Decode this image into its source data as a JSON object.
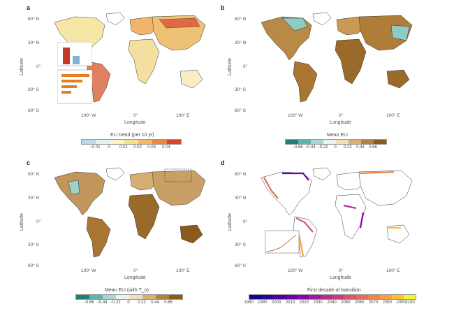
{
  "panels": {
    "a": {
      "label": "a",
      "y_ticks": [
        "60° N",
        "30° N",
        "0°",
        "30° S",
        "60° S"
      ],
      "x_ticks": [
        "100° W",
        "0°",
        "100° E"
      ],
      "xlabel": "Longitude",
      "ylabel": "Latitude",
      "colorbar_title": "ELI trend (per 10 yr)",
      "colorbar_ticks": [
        "−0.01",
        "0",
        "0.01",
        "0.02",
        "0.03",
        "0.04"
      ],
      "colorbar_colors": [
        "#b8dbea",
        "#e3f1f6",
        "#fbf3c8",
        "#f8df8c",
        "#f6b866",
        "#ee8445",
        "#d9452c"
      ]
    },
    "b": {
      "label": "b",
      "y_ticks": [
        "60° N",
        "30° N",
        "0°",
        "30° S",
        "60° S"
      ],
      "x_ticks": [
        "100° W",
        "0°",
        "100° E"
      ],
      "xlabel": "Longitude",
      "ylabel": "Latitude",
      "colorbar_title": "Mean ELI",
      "colorbar_ticks": [
        "−0.66",
        "−0.44",
        "−0.22",
        "0",
        "0.22",
        "0.44",
        "0.66"
      ],
      "colorbar_colors": [
        "#1f7f7a",
        "#5fb4ad",
        "#a8d8d2",
        "#eef2ea",
        "#efe0bd",
        "#d7b179",
        "#b4823b",
        "#8a5a1e"
      ]
    },
    "c": {
      "label": "c",
      "y_ticks": [
        "60° N",
        "30° N",
        "0°",
        "30° S",
        "60° S"
      ],
      "x_ticks": [
        "100° W",
        "0°",
        "100° E"
      ],
      "xlabel": "Longitude",
      "ylabel": "Latitude",
      "colorbar_title": "Mean ELI (with T_o)",
      "colorbar_ticks": [
        "−0.66",
        "−0.44",
        "−0.22",
        "0",
        "0.22",
        "0.44",
        "0.66"
      ],
      "colorbar_colors": [
        "#1f7f7a",
        "#5fb4ad",
        "#a8d8d2",
        "#eef2ea",
        "#efe0bd",
        "#d7b179",
        "#b4823b",
        "#8a5a1e"
      ]
    },
    "d": {
      "label": "d",
      "y_ticks": [
        "60° N",
        "30° N",
        "0°",
        "30° S",
        "60° S"
      ],
      "x_ticks": [
        "100° W",
        "0°",
        "100° E"
      ],
      "xlabel": "Longitude",
      "ylabel": "Latitude",
      "colorbar_title": "First decade of transition",
      "colorbar_ticks": [
        "1980",
        "1990",
        "2000",
        "2010",
        "2020",
        "2030",
        "2040",
        "2050",
        "2060",
        "2070",
        "2080",
        "2090",
        "2100"
      ],
      "colorbar_colors": [
        "#0d0887",
        "#2a0593",
        "#4c02a1",
        "#6a00a8",
        "#8707a6",
        "#a01a9c",
        "#b52f8c",
        "#c8437b",
        "#d8576b",
        "#e66c5c",
        "#f2844b",
        "#fb9f3a",
        "#fdbf2b",
        "#f0f921"
      ]
    }
  },
  "chart_data": [
    {
      "type": "heatmap",
      "title": "",
      "panel": "a",
      "variable": "ELI trend (per 10 yr)",
      "scale": [
        -0.01,
        0.04
      ]
    },
    {
      "type": "heatmap",
      "title": "",
      "panel": "b",
      "variable": "Mean ELI",
      "scale": [
        -0.66,
        0.66
      ]
    },
    {
      "type": "heatmap",
      "title": "",
      "panel": "c",
      "variable": "Mean ELI (with T_o)",
      "scale": [
        -0.66,
        0.66
      ]
    },
    {
      "type": "heatmap",
      "title": "",
      "panel": "d",
      "variable": "First decade of transition",
      "scale": [
        1980,
        2100
      ]
    }
  ]
}
